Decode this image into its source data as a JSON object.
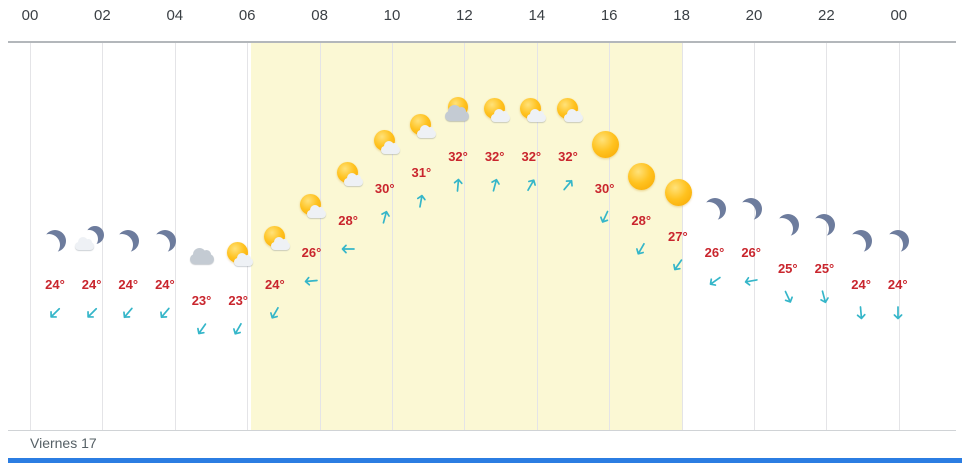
{
  "colors": {
    "temperature": "#c9252d",
    "wind_arrow": "#35b6c9",
    "daylight_band": "#fbf8d4",
    "moon": "#6d7c9d",
    "sun": "#ffb300",
    "grid": "#e4e4e7",
    "axis_text": "#3b4045",
    "footer_text": "#566066",
    "bottom_bar": "#2b7de2"
  },
  "chart_data": {
    "type": "line",
    "title": "",
    "x": [
      "00",
      "01",
      "02",
      "03",
      "04",
      "05",
      "06",
      "07",
      "08",
      "09",
      "10",
      "11",
      "12",
      "13",
      "14",
      "15",
      "16",
      "17",
      "18",
      "19",
      "20",
      "21",
      "22",
      "23"
    ],
    "x_tick_labels": [
      "00",
      "02",
      "04",
      "06",
      "08",
      "10",
      "12",
      "14",
      "16",
      "18",
      "20",
      "22",
      "00"
    ],
    "unit": "°",
    "ylim": [
      23,
      32
    ],
    "day_label": "Viernes 17",
    "daylight": {
      "start_hour": 6.1,
      "end_hour": 18.0
    },
    "series": [
      {
        "name": "temperature_c",
        "values": [
          24,
          24,
          24,
          24,
          23,
          23,
          24,
          26,
          28,
          30,
          31,
          32,
          32,
          32,
          32,
          30,
          28,
          27,
          26,
          26,
          25,
          25,
          24,
          24
        ]
      },
      {
        "name": "wind_direction_deg",
        "values": [
          225,
          225,
          220,
          220,
          215,
          210,
          210,
          265,
          270,
          15,
          10,
          5,
          15,
          30,
          40,
          205,
          210,
          215,
          235,
          260,
          155,
          165,
          175,
          180
        ]
      }
    ],
    "icons": [
      "moon",
      "moon-cloud",
      "moon",
      "moon",
      "cloud",
      "sun-cloud",
      "sun-cloud",
      "sun-cloud",
      "sun-cloud",
      "sun-cloud",
      "sun-cloud",
      "sun-cloud-gray",
      "sun-cloud",
      "sun-cloud",
      "sun-cloud",
      "sun",
      "sun",
      "sun",
      "moon",
      "moon",
      "moon",
      "moon",
      "moon",
      "moon"
    ]
  }
}
